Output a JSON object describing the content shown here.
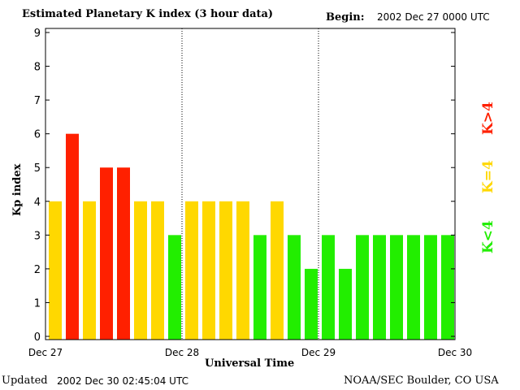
{
  "chart_data": {
    "type": "bar",
    "title": "Estimated Planetary K index (3 hour data)",
    "begin_label": "Begin:",
    "begin_value": "2002 Dec 27 0000 UTC",
    "xlabel": "Universal Time",
    "ylabel": "Kp index",
    "ylim": [
      0,
      9
    ],
    "yticks": [
      "0",
      "1",
      "2",
      "3",
      "4",
      "5",
      "6",
      "7",
      "8",
      "9"
    ],
    "xticks": [
      "Dec 27",
      "Dec 28",
      "Dec 29",
      "Dec 30"
    ],
    "values": [
      4,
      6,
      4,
      5,
      5,
      4,
      4,
      3,
      4,
      4,
      4,
      4,
      3,
      4,
      3,
      2,
      3,
      2,
      3,
      3,
      3,
      3,
      3,
      3
    ],
    "legend": [
      {
        "label": "K>4",
        "color": "#ff2000"
      },
      {
        "label": "K=4",
        "color": "#ffd800"
      },
      {
        "label": "K<4",
        "color": "#22ee00"
      }
    ],
    "legend_placement": "right",
    "grid": false
  },
  "footer": {
    "updated_label": "Updated",
    "updated_value": "2002 Dec 30 02:45:04 UTC",
    "source": "NOAA/SEC Boulder, CO USA"
  }
}
